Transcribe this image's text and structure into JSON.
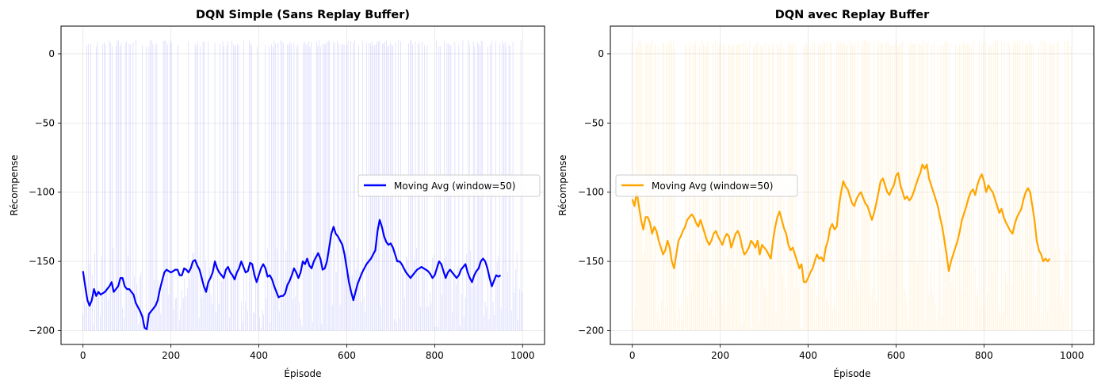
{
  "chart_data": [
    {
      "type": "line",
      "title": "DQN Simple (Sans Replay Buffer)",
      "xlabel": "Épisode",
      "ylabel": "Récompense",
      "xlim": [
        -50,
        1050
      ],
      "ylim": [
        -210,
        20
      ],
      "xticks": [
        0,
        200,
        400,
        600,
        800,
        1000
      ],
      "yticks": [
        0,
        -50,
        -100,
        -150,
        -200
      ],
      "grid": true,
      "legend_position": "center-right",
      "raw_color": "#0000ff",
      "series": [
        {
          "name": "Moving Avg (window=50)",
          "color": "#0000ff",
          "x": [
            0,
            5,
            10,
            15,
            20,
            25,
            30,
            35,
            40,
            45,
            50,
            55,
            60,
            65,
            70,
            75,
            80,
            85,
            90,
            95,
            100,
            105,
            110,
            115,
            120,
            125,
            130,
            135,
            140,
            145,
            150,
            155,
            160,
            165,
            170,
            175,
            180,
            185,
            190,
            195,
            200,
            205,
            210,
            215,
            220,
            225,
            230,
            235,
            240,
            245,
            250,
            255,
            260,
            265,
            270,
            275,
            280,
            285,
            290,
            295,
            300,
            305,
            310,
            315,
            320,
            325,
            330,
            335,
            340,
            345,
            350,
            355,
            360,
            365,
            370,
            375,
            380,
            385,
            390,
            395,
            400,
            405,
            410,
            415,
            420,
            425,
            430,
            435,
            440,
            445,
            450,
            455,
            460,
            465,
            470,
            475,
            480,
            485,
            490,
            495,
            500,
            505,
            510,
            515,
            520,
            525,
            530,
            535,
            540,
            545,
            550,
            555,
            560,
            565,
            570,
            575,
            580,
            585,
            590,
            595,
            600,
            605,
            610,
            615,
            620,
            625,
            630,
            635,
            640,
            645,
            650,
            655,
            660,
            665,
            670,
            675,
            680,
            685,
            690,
            695,
            700,
            705,
            710,
            715,
            720,
            725,
            730,
            735,
            740,
            745,
            750,
            755,
            760,
            765,
            770,
            775,
            780,
            785,
            790,
            795,
            800,
            805,
            810,
            815,
            820,
            825,
            830,
            835,
            840,
            845,
            850,
            855,
            860,
            865,
            870,
            875,
            880,
            885,
            890,
            895,
            900,
            905,
            910,
            915,
            920,
            925,
            930,
            935,
            940,
            945,
            950
          ],
          "y": [
            -157,
            -168,
            -178,
            -182,
            -178,
            -170,
            -175,
            -172,
            -174,
            -173,
            -172,
            -170,
            -168,
            -165,
            -172,
            -170,
            -168,
            -162,
            -162,
            -168,
            -170,
            -170,
            -172,
            -174,
            -180,
            -183,
            -186,
            -190,
            -198,
            -199,
            -188,
            -186,
            -184,
            -182,
            -178,
            -170,
            -164,
            -158,
            -156,
            -157,
            -158,
            -157,
            -156,
            -156,
            -160,
            -160,
            -155,
            -156,
            -158,
            -155,
            -150,
            -149,
            -153,
            -156,
            -162,
            -168,
            -172,
            -165,
            -162,
            -158,
            -150,
            -155,
            -158,
            -160,
            -162,
            -156,
            -154,
            -158,
            -160,
            -163,
            -158,
            -155,
            -150,
            -154,
            -158,
            -157,
            -151,
            -152,
            -160,
            -165,
            -160,
            -155,
            -152,
            -155,
            -161,
            -160,
            -163,
            -168,
            -172,
            -176,
            -175,
            -175,
            -173,
            -167,
            -164,
            -160,
            -155,
            -158,
            -162,
            -158,
            -150,
            -152,
            -148,
            -153,
            -155,
            -150,
            -147,
            -144,
            -148,
            -156,
            -155,
            -150,
            -140,
            -130,
            -125,
            -130,
            -132,
            -135,
            -138,
            -145,
            -155,
            -165,
            -172,
            -178,
            -172,
            -166,
            -162,
            -158,
            -155,
            -152,
            -150,
            -148,
            -145,
            -142,
            -128,
            -120,
            -125,
            -132,
            -136,
            -138,
            -137,
            -140,
            -145,
            -150,
            -150,
            -152,
            -155,
            -158,
            -160,
            -162,
            -160,
            -158,
            -156,
            -155,
            -154,
            -155,
            -156,
            -157,
            -159,
            -162,
            -160,
            -155,
            -150,
            -152,
            -157,
            -162,
            -158,
            -156,
            -158,
            -160,
            -162,
            -160,
            -156,
            -154,
            -152,
            -158,
            -162,
            -165,
            -160,
            -157,
            -155,
            -150,
            -148,
            -150,
            -155,
            -162,
            -168,
            -164,
            -160,
            -161,
            -160
          ]
        }
      ]
    },
    {
      "type": "line",
      "title": "DQN avec Replay Buffer",
      "xlabel": "Épisode",
      "ylabel": "Récompense",
      "xlim": [
        -50,
        1050
      ],
      "ylim": [
        -210,
        20
      ],
      "xticks": [
        0,
        200,
        400,
        600,
        800,
        1000
      ],
      "yticks": [
        0,
        -50,
        -100,
        -150,
        -200
      ],
      "grid": true,
      "legend_position": "center-left",
      "raw_color": "#ffa500",
      "series": [
        {
          "name": "Moving Avg (window=50)",
          "color": "#ffa500",
          "x": [
            0,
            5,
            10,
            15,
            20,
            25,
            30,
            35,
            40,
            45,
            50,
            55,
            60,
            65,
            70,
            75,
            80,
            85,
            90,
            95,
            100,
            105,
            110,
            115,
            120,
            125,
            130,
            135,
            140,
            145,
            150,
            155,
            160,
            165,
            170,
            175,
            180,
            185,
            190,
            195,
            200,
            205,
            210,
            215,
            220,
            225,
            230,
            235,
            240,
            245,
            250,
            255,
            260,
            265,
            270,
            275,
            280,
            285,
            290,
            295,
            300,
            305,
            310,
            315,
            320,
            325,
            330,
            335,
            340,
            345,
            350,
            355,
            360,
            365,
            370,
            375,
            380,
            385,
            390,
            395,
            400,
            405,
            410,
            415,
            420,
            425,
            430,
            435,
            440,
            445,
            450,
            455,
            460,
            465,
            470,
            475,
            480,
            485,
            490,
            495,
            500,
            505,
            510,
            515,
            520,
            525,
            530,
            535,
            540,
            545,
            550,
            555,
            560,
            565,
            570,
            575,
            580,
            585,
            590,
            595,
            600,
            605,
            610,
            615,
            620,
            625,
            630,
            635,
            640,
            645,
            650,
            655,
            660,
            665,
            670,
            675,
            680,
            685,
            690,
            695,
            700,
            705,
            710,
            715,
            720,
            725,
            730,
            735,
            740,
            745,
            750,
            755,
            760,
            765,
            770,
            775,
            780,
            785,
            790,
            795,
            800,
            805,
            810,
            815,
            820,
            825,
            830,
            835,
            840,
            845,
            850,
            855,
            860,
            865,
            870,
            875,
            880,
            885,
            890,
            895,
            900,
            905,
            910,
            915,
            920,
            925,
            930,
            935,
            940,
            945,
            950
          ],
          "y": [
            -105,
            -110,
            -100,
            -110,
            -120,
            -127,
            -118,
            -118,
            -122,
            -130,
            -125,
            -128,
            -135,
            -140,
            -145,
            -142,
            -135,
            -140,
            -150,
            -155,
            -145,
            -135,
            -132,
            -128,
            -125,
            -120,
            -118,
            -116,
            -118,
            -122,
            -125,
            -120,
            -125,
            -130,
            -135,
            -138,
            -135,
            -130,
            -128,
            -132,
            -135,
            -138,
            -133,
            -130,
            -132,
            -140,
            -135,
            -130,
            -128,
            -132,
            -140,
            -145,
            -143,
            -140,
            -135,
            -137,
            -140,
            -135,
            -145,
            -138,
            -140,
            -142,
            -145,
            -148,
            -135,
            -125,
            -118,
            -114,
            -120,
            -126,
            -130,
            -138,
            -142,
            -140,
            -145,
            -150,
            -155,
            -152,
            -165,
            -165,
            -162,
            -158,
            -155,
            -150,
            -145,
            -148,
            -147,
            -150,
            -140,
            -135,
            -126,
            -123,
            -127,
            -125,
            -110,
            -100,
            -92,
            -96,
            -98,
            -103,
            -108,
            -110,
            -105,
            -102,
            -100,
            -104,
            -108,
            -110,
            -115,
            -120,
            -115,
            -108,
            -100,
            -92,
            -90,
            -95,
            -100,
            -102,
            -98,
            -95,
            -88,
            -86,
            -95,
            -100,
            -105,
            -103,
            -106,
            -104,
            -100,
            -95,
            -90,
            -86,
            -80,
            -83,
            -80,
            -90,
            -95,
            -100,
            -105,
            -110,
            -118,
            -125,
            -135,
            -145,
            -157,
            -150,
            -145,
            -140,
            -135,
            -128,
            -120,
            -115,
            -110,
            -104,
            -100,
            -98,
            -102,
            -95,
            -90,
            -87,
            -92,
            -100,
            -95,
            -98,
            -100,
            -105,
            -110,
            -115,
            -112,
            -118,
            -122,
            -125,
            -128,
            -130,
            -123,
            -118,
            -115,
            -112,
            -105,
            -100,
            -97,
            -100,
            -110,
            -120,
            -135,
            -142,
            -145,
            -150,
            -148,
            -150,
            -148
          ]
        }
      ]
    }
  ]
}
